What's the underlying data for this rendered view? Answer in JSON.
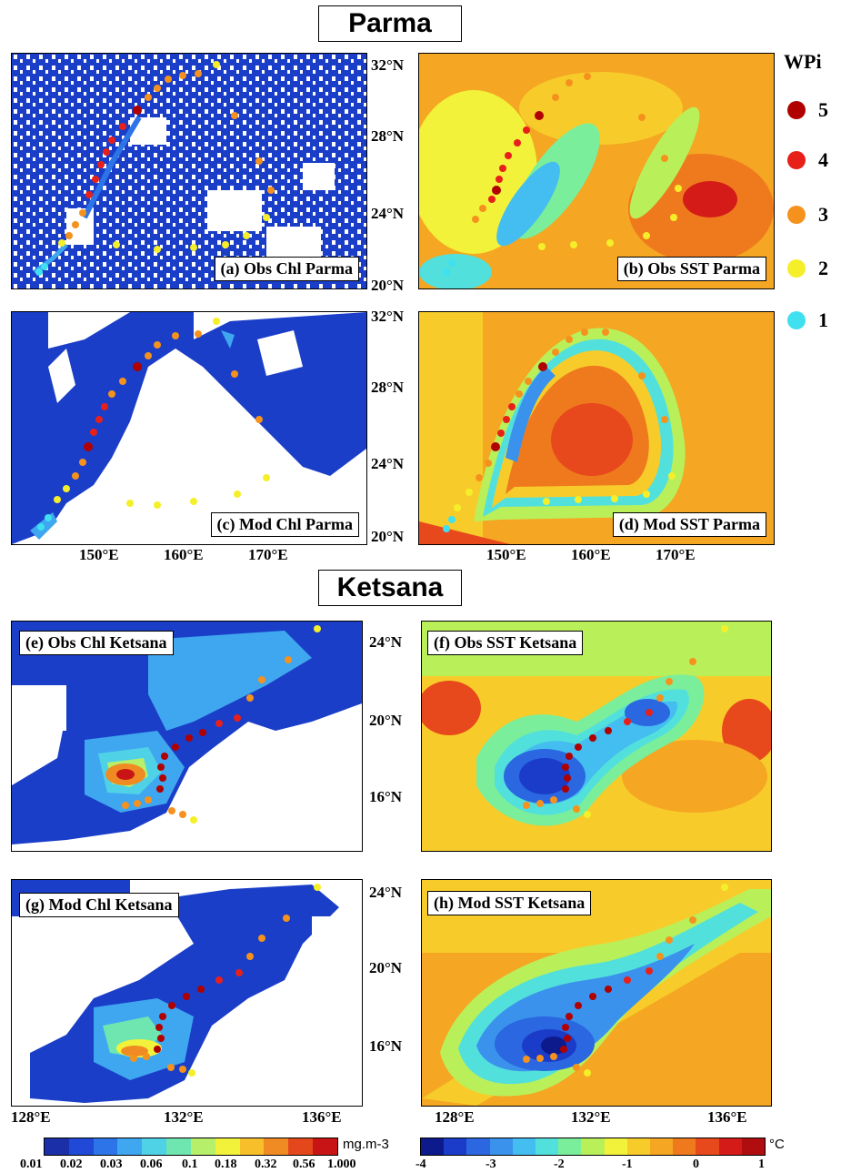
{
  "titles": {
    "top": "Parma",
    "bottom": "Ketsana"
  },
  "legend": {
    "title": "WPi",
    "items": [
      {
        "label": "5",
        "color": "#b00000"
      },
      {
        "label": "4",
        "color": "#e8201a"
      },
      {
        "label": "3",
        "color": "#f5921e"
      },
      {
        "label": "2",
        "color": "#f5ef2a"
      },
      {
        "label": "1",
        "color": "#3fe0f0"
      }
    ]
  },
  "panels": {
    "a": "(a) Obs Chl Parma",
    "b": "(b) Obs SST Parma",
    "c": "(c) Mod Chl Parma",
    "d": "(d) Mod SST Parma",
    "e": "(e) Obs Chl Ketsana",
    "f": "(f) Obs SST Ketsana",
    "g": "(g) Mod Chl Ketsana",
    "h": "(h) Mod SST Ketsana"
  },
  "parma_axes": {
    "lat_top": [
      "32°N",
      "28°N",
      "24°N",
      "20°N"
    ],
    "lat_bottom": [
      "32°N",
      "28°N",
      "24°N",
      "20°N"
    ],
    "lon": [
      "150°E",
      "160°E",
      "170°E"
    ]
  },
  "ketsana_axes": {
    "lat_top": [
      "24°N",
      "20°N",
      "16°N"
    ],
    "lat_bottom": [
      "24°N",
      "20°N",
      "16°N"
    ],
    "lon": [
      "128°E",
      "132°E",
      "136°E"
    ]
  },
  "chl_colorbar": {
    "unit": "mg.m-3",
    "labels": [
      "0.01",
      "0.02",
      "0.03",
      "0.06",
      "0.1",
      "0.18",
      "0.32",
      "0.56",
      "1.000"
    ],
    "colors": [
      "#1a2fa8",
      "#1f49d6",
      "#2c74e8",
      "#3fa6f0",
      "#4fd2e6",
      "#6fe6b0",
      "#b6ef6a",
      "#f2f23a",
      "#f7c02a",
      "#f08a22",
      "#e4471c",
      "#c81414"
    ]
  },
  "sst_colorbar": {
    "unit": "°C",
    "labels": [
      "-4",
      "-3",
      "-2",
      "-1",
      "0",
      "1"
    ],
    "colors": [
      "#0d1a8c",
      "#1a3cc8",
      "#2a67e0",
      "#3a92ec",
      "#44bdf0",
      "#52e0dc",
      "#7aee9a",
      "#b9f05a",
      "#f2f23a",
      "#f7cc2a",
      "#f5a622",
      "#ef7a1e",
      "#e8491c",
      "#d41b18",
      "#b00d10"
    ]
  }
}
